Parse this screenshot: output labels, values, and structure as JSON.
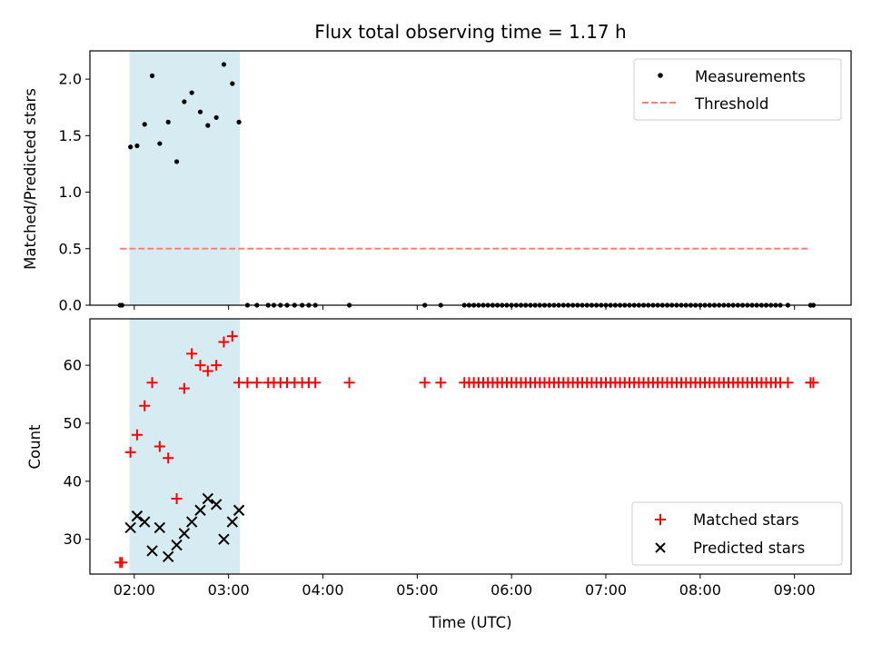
{
  "chart_data": {
    "type": "scatter",
    "title": "Flux total observing time = 1.17 h",
    "xlabel": "Time (UTC)",
    "x_unit": "hours UTC",
    "xlim": [
      1.53,
      9.6
    ],
    "x_ticks": [
      2,
      3,
      4,
      5,
      6,
      7,
      8,
      9
    ],
    "x_tick_labels": [
      "02:00",
      "03:00",
      "04:00",
      "05:00",
      "06:00",
      "07:00",
      "08:00",
      "09:00"
    ],
    "observing_window": {
      "start": 1.95,
      "end": 3.12,
      "color": "#add8e6"
    },
    "top": {
      "ylabel": "Matched/Predicted stars",
      "ylim": [
        0,
        2.25
      ],
      "y_ticks": [
        0.0,
        0.5,
        1.0,
        1.5,
        2.0
      ],
      "y_tick_labels": [
        "0.0",
        "0.5",
        "1.0",
        "1.5",
        "2.0"
      ],
      "legend": {
        "position": "top-right",
        "entries": [
          "Measurements",
          "Threshold"
        ]
      },
      "series": [
        {
          "name": "Measurements",
          "marker": "dot",
          "color": "#000000",
          "points": [
            [
              1.85,
              0
            ],
            [
              1.87,
              0
            ],
            [
              1.96,
              1.4
            ],
            [
              2.03,
              1.41
            ],
            [
              2.11,
              1.6
            ],
            [
              2.19,
              2.03
            ],
            [
              2.27,
              1.43
            ],
            [
              2.36,
              1.62
            ],
            [
              2.45,
              1.27
            ],
            [
              2.53,
              1.8
            ],
            [
              2.61,
              1.88
            ],
            [
              2.7,
              1.71
            ],
            [
              2.78,
              1.59
            ],
            [
              2.87,
              1.66
            ],
            [
              2.95,
              2.13
            ],
            [
              3.04,
              1.96
            ],
            [
              3.11,
              1.62
            ],
            [
              3.2,
              0
            ],
            [
              3.3,
              0
            ],
            [
              3.42,
              0
            ],
            [
              3.48,
              0
            ],
            [
              3.55,
              0
            ],
            [
              3.62,
              0
            ],
            [
              3.7,
              0
            ],
            [
              3.78,
              0
            ],
            [
              3.85,
              0
            ],
            [
              3.92,
              0
            ],
            [
              4.28,
              0
            ],
            [
              5.08,
              0
            ],
            [
              5.25,
              0
            ],
            [
              5.5,
              0
            ],
            [
              5.55,
              0
            ],
            [
              5.6,
              0
            ],
            [
              5.65,
              0
            ],
            [
              5.7,
              0
            ],
            [
              5.75,
              0
            ],
            [
              5.8,
              0
            ],
            [
              5.85,
              0
            ],
            [
              5.9,
              0
            ],
            [
              5.95,
              0
            ],
            [
              6.0,
              0
            ],
            [
              6.05,
              0
            ],
            [
              6.1,
              0
            ],
            [
              6.15,
              0
            ],
            [
              6.2,
              0
            ],
            [
              6.25,
              0
            ],
            [
              6.3,
              0
            ],
            [
              6.35,
              0
            ],
            [
              6.4,
              0
            ],
            [
              6.45,
              0
            ],
            [
              6.5,
              0
            ],
            [
              6.55,
              0
            ],
            [
              6.6,
              0
            ],
            [
              6.65,
              0
            ],
            [
              6.7,
              0
            ],
            [
              6.75,
              0
            ],
            [
              6.8,
              0
            ],
            [
              6.85,
              0
            ],
            [
              6.9,
              0
            ],
            [
              6.95,
              0
            ],
            [
              7.0,
              0
            ],
            [
              7.05,
              0
            ],
            [
              7.1,
              0
            ],
            [
              7.15,
              0
            ],
            [
              7.2,
              0
            ],
            [
              7.25,
              0
            ],
            [
              7.3,
              0
            ],
            [
              7.35,
              0
            ],
            [
              7.4,
              0
            ],
            [
              7.45,
              0
            ],
            [
              7.5,
              0
            ],
            [
              7.55,
              0
            ],
            [
              7.6,
              0
            ],
            [
              7.65,
              0
            ],
            [
              7.7,
              0
            ],
            [
              7.75,
              0
            ],
            [
              7.8,
              0
            ],
            [
              7.85,
              0
            ],
            [
              7.9,
              0
            ],
            [
              7.95,
              0
            ],
            [
              8.0,
              0
            ],
            [
              8.05,
              0
            ],
            [
              8.1,
              0
            ],
            [
              8.15,
              0
            ],
            [
              8.2,
              0
            ],
            [
              8.25,
              0
            ],
            [
              8.3,
              0
            ],
            [
              8.35,
              0
            ],
            [
              8.4,
              0
            ],
            [
              8.45,
              0
            ],
            [
              8.5,
              0
            ],
            [
              8.55,
              0
            ],
            [
              8.6,
              0
            ],
            [
              8.65,
              0
            ],
            [
              8.7,
              0
            ],
            [
              8.75,
              0
            ],
            [
              8.8,
              0
            ],
            [
              8.85,
              0
            ],
            [
              8.93,
              0
            ],
            [
              9.17,
              0
            ],
            [
              9.2,
              0
            ]
          ]
        },
        {
          "name": "Threshold",
          "type": "line",
          "dash": true,
          "color": "#ff7f7f",
          "x": [
            1.85,
            9.15
          ],
          "y": [
            0.5,
            0.5
          ]
        }
      ]
    },
    "bottom": {
      "ylabel": "Count",
      "ylim": [
        24,
        68
      ],
      "y_ticks": [
        30,
        40,
        50,
        60
      ],
      "y_tick_labels": [
        "30",
        "40",
        "50",
        "60"
      ],
      "legend": {
        "position": "bottom-right",
        "entries": [
          "Matched stars",
          "Predicted stars"
        ]
      },
      "series": [
        {
          "name": "Matched stars",
          "marker": "plus",
          "color": "#ff0000",
          "points": [
            [
              1.85,
              26
            ],
            [
              1.87,
              26
            ],
            [
              1.96,
              45
            ],
            [
              2.03,
              48
            ],
            [
              2.11,
              53
            ],
            [
              2.19,
              57
            ],
            [
              2.27,
              46
            ],
            [
              2.36,
              44
            ],
            [
              2.45,
              37
            ],
            [
              2.53,
              56
            ],
            [
              2.61,
              62
            ],
            [
              2.7,
              60
            ],
            [
              2.78,
              59
            ],
            [
              2.87,
              60
            ],
            [
              2.95,
              64
            ],
            [
              3.04,
              65
            ],
            [
              3.11,
              57
            ],
            [
              3.2,
              57
            ],
            [
              3.3,
              57
            ],
            [
              3.42,
              57
            ],
            [
              3.48,
              57
            ],
            [
              3.55,
              57
            ],
            [
              3.62,
              57
            ],
            [
              3.7,
              57
            ],
            [
              3.78,
              57
            ],
            [
              3.85,
              57
            ],
            [
              3.92,
              57
            ],
            [
              4.28,
              57
            ],
            [
              5.08,
              57
            ],
            [
              5.25,
              57
            ],
            [
              5.5,
              57
            ],
            [
              5.55,
              57
            ],
            [
              5.6,
              57
            ],
            [
              5.65,
              57
            ],
            [
              5.7,
              57
            ],
            [
              5.75,
              57
            ],
            [
              5.8,
              57
            ],
            [
              5.85,
              57
            ],
            [
              5.9,
              57
            ],
            [
              5.95,
              57
            ],
            [
              6.0,
              57
            ],
            [
              6.05,
              57
            ],
            [
              6.1,
              57
            ],
            [
              6.15,
              57
            ],
            [
              6.2,
              57
            ],
            [
              6.25,
              57
            ],
            [
              6.3,
              57
            ],
            [
              6.35,
              57
            ],
            [
              6.4,
              57
            ],
            [
              6.45,
              57
            ],
            [
              6.5,
              57
            ],
            [
              6.55,
              57
            ],
            [
              6.6,
              57
            ],
            [
              6.65,
              57
            ],
            [
              6.7,
              57
            ],
            [
              6.75,
              57
            ],
            [
              6.8,
              57
            ],
            [
              6.85,
              57
            ],
            [
              6.9,
              57
            ],
            [
              6.95,
              57
            ],
            [
              7.0,
              57
            ],
            [
              7.05,
              57
            ],
            [
              7.1,
              57
            ],
            [
              7.15,
              57
            ],
            [
              7.2,
              57
            ],
            [
              7.25,
              57
            ],
            [
              7.3,
              57
            ],
            [
              7.35,
              57
            ],
            [
              7.4,
              57
            ],
            [
              7.45,
              57
            ],
            [
              7.5,
              57
            ],
            [
              7.55,
              57
            ],
            [
              7.6,
              57
            ],
            [
              7.65,
              57
            ],
            [
              7.7,
              57
            ],
            [
              7.75,
              57
            ],
            [
              7.8,
              57
            ],
            [
              7.85,
              57
            ],
            [
              7.9,
              57
            ],
            [
              7.95,
              57
            ],
            [
              8.0,
              57
            ],
            [
              8.05,
              57
            ],
            [
              8.1,
              57
            ],
            [
              8.15,
              57
            ],
            [
              8.2,
              57
            ],
            [
              8.25,
              57
            ],
            [
              8.3,
              57
            ],
            [
              8.35,
              57
            ],
            [
              8.4,
              57
            ],
            [
              8.45,
              57
            ],
            [
              8.5,
              57
            ],
            [
              8.55,
              57
            ],
            [
              8.6,
              57
            ],
            [
              8.65,
              57
            ],
            [
              8.7,
              57
            ],
            [
              8.75,
              57
            ],
            [
              8.8,
              57
            ],
            [
              8.85,
              57
            ],
            [
              8.93,
              57
            ],
            [
              9.17,
              57
            ],
            [
              9.2,
              57
            ]
          ]
        },
        {
          "name": "Predicted stars",
          "marker": "x",
          "color": "#000000",
          "points": [
            [
              1.96,
              32
            ],
            [
              2.03,
              34
            ],
            [
              2.11,
              33
            ],
            [
              2.19,
              28
            ],
            [
              2.27,
              32
            ],
            [
              2.36,
              27
            ],
            [
              2.45,
              29
            ],
            [
              2.53,
              31
            ],
            [
              2.61,
              33
            ],
            [
              2.7,
              35
            ],
            [
              2.78,
              37
            ],
            [
              2.87,
              36
            ],
            [
              2.95,
              30
            ],
            [
              3.04,
              33
            ],
            [
              3.11,
              35
            ]
          ]
        }
      ]
    }
  }
}
